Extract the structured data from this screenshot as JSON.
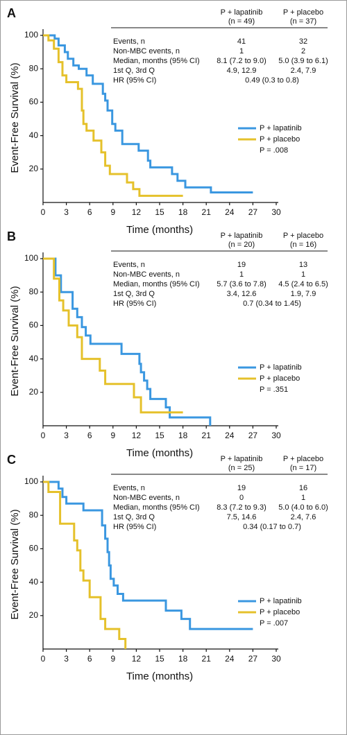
{
  "chart_data": [
    {
      "type": "line",
      "step": true,
      "panel": "A",
      "x_label": "Time (months)",
      "y_label": "Event-Free Survival (%)",
      "xlim": [
        0,
        30
      ],
      "xticks": [
        0,
        3,
        6,
        9,
        12,
        15,
        18,
        21,
        24,
        27,
        30
      ],
      "ylim": [
        0,
        100
      ],
      "yticks": [
        20,
        40,
        60,
        80,
        100
      ],
      "annotation": "P = .008",
      "table": {
        "columns": [
          {
            "name": "P + lapatinib",
            "n": "(n = 49)"
          },
          {
            "name": "P + placebo",
            "n": "(n = 37)"
          }
        ],
        "rows": [
          [
            "Events, n",
            "41",
            "32"
          ],
          [
            "Non-MBC events, n",
            "1",
            "2"
          ],
          [
            "Median, months (95% CI)",
            "8.1 (7.2 to 9.0)",
            "5.0 (3.9 to 6.1)"
          ],
          [
            "1st Q, 3rd Q",
            "4.9, 12.9",
            "2.4, 7.9"
          ],
          [
            "HR (95% CI)",
            "0.49 (0.3 to 0.8)"
          ]
        ]
      },
      "series": [
        {
          "name": "P + lapatinib",
          "color": "#3a97e0",
          "x": [
            0,
            1.5,
            1.5,
            2,
            2,
            2.8,
            2.8,
            3.2,
            3.2,
            3.9,
            3.9,
            4.6,
            4.6,
            5.6,
            5.6,
            6.4,
            6.4,
            7.7,
            7.7,
            8,
            8,
            8.3,
            8.3,
            8.9,
            8.9,
            9.3,
            9.3,
            10.2,
            10.2,
            12.3,
            12.3,
            13.5,
            13.5,
            13.8,
            13.8,
            16.6,
            16.6,
            17.3,
            17.3,
            18.3,
            18.3,
            21.6,
            21.6,
            27
          ],
          "values": [
            100,
            100,
            98,
            98,
            94,
            94,
            90,
            90,
            86,
            86,
            82,
            82,
            80,
            80,
            76,
            76,
            71,
            71,
            65,
            65,
            61,
            61,
            55,
            55,
            47,
            47,
            43,
            43,
            35,
            35,
            31,
            31,
            25,
            25,
            21,
            21,
            17,
            17,
            13,
            13,
            9,
            9,
            6,
            6
          ]
        },
        {
          "name": "P + placebo",
          "color": "#e5c12b",
          "x": [
            0,
            0.7,
            0.7,
            1.4,
            1.4,
            2,
            2,
            2.5,
            2.5,
            3,
            3,
            4.5,
            4.5,
            5,
            5,
            5.2,
            5.2,
            5.6,
            5.6,
            6.5,
            6.5,
            7.5,
            7.5,
            8,
            8,
            8.6,
            8.6,
            10.8,
            10.8,
            11.6,
            11.6,
            12.4,
            12.4,
            18
          ],
          "values": [
            100,
            100,
            97,
            97,
            92,
            92,
            84,
            84,
            76,
            76,
            72,
            72,
            68,
            68,
            55,
            55,
            47,
            47,
            43,
            43,
            37,
            37,
            30,
            30,
            22,
            22,
            17,
            17,
            12,
            12,
            8,
            8,
            4,
            4
          ]
        }
      ]
    },
    {
      "type": "line",
      "step": true,
      "panel": "B",
      "x_label": "Time (months)",
      "y_label": "Event-Free Survival (%)",
      "xlim": [
        0,
        30
      ],
      "xticks": [
        0,
        3,
        6,
        9,
        12,
        15,
        18,
        21,
        24,
        27,
        30
      ],
      "ylim": [
        0,
        100
      ],
      "yticks": [
        20,
        40,
        60,
        80,
        100
      ],
      "annotation": "P = .351",
      "table": {
        "columns": [
          {
            "name": "P + lapatinib",
            "n": "(n = 20)"
          },
          {
            "name": "P + placebo",
            "n": "(n = 16)"
          }
        ],
        "rows": [
          [
            "Events, n",
            "19",
            "13"
          ],
          [
            "Non-MBC events, n",
            "1",
            "1"
          ],
          [
            "Median, months (95% CI)",
            "5.7 (3.6 to 7.8)",
            "4.5 (2.4 to 6.5)"
          ],
          [
            "1st Q, 3rd Q",
            "3.4, 12.6",
            "1.9, 7.9"
          ],
          [
            "HR (95% CI)",
            "0.7 (0.34 to 1.45)"
          ]
        ]
      },
      "series": [
        {
          "name": "P + lapatinib",
          "color": "#3a97e0",
          "x": [
            0,
            1.6,
            1.6,
            2.3,
            2.3,
            3.8,
            3.8,
            4.4,
            4.4,
            5,
            5,
            5.5,
            5.5,
            6.1,
            6.1,
            10.1,
            10.1,
            12.4,
            12.4,
            12.6,
            12.6,
            13,
            13,
            13.4,
            13.4,
            13.8,
            13.8,
            15.8,
            15.8,
            16.3,
            16.3,
            21.5,
            21.5
          ],
          "values": [
            100,
            100,
            90,
            90,
            80,
            80,
            70,
            70,
            65,
            65,
            59,
            59,
            54,
            54,
            49,
            49,
            43,
            43,
            37,
            37,
            32,
            32,
            27,
            27,
            22,
            22,
            16,
            16,
            11,
            11,
            5,
            5,
            0
          ]
        },
        {
          "name": "P + placebo",
          "color": "#e5c12b",
          "x": [
            0,
            1.4,
            1.4,
            2.1,
            2.1,
            2.6,
            2.6,
            3.3,
            3.3,
            4.4,
            4.4,
            5,
            5,
            7.3,
            7.3,
            8,
            8,
            11.7,
            11.7,
            12.6,
            12.6,
            18
          ],
          "values": [
            100,
            100,
            88,
            88,
            75,
            75,
            69,
            69,
            60,
            60,
            53,
            53,
            40,
            40,
            33,
            33,
            25,
            25,
            17,
            17,
            8,
            8
          ]
        }
      ]
    },
    {
      "type": "line",
      "step": true,
      "panel": "C",
      "x_label": "Time (months)",
      "y_label": "Event-Free Survival (%)",
      "xlim": [
        0,
        30
      ],
      "xticks": [
        0,
        3,
        6,
        9,
        12,
        15,
        18,
        21,
        24,
        27,
        30
      ],
      "ylim": [
        0,
        100
      ],
      "yticks": [
        20,
        40,
        60,
        80,
        100
      ],
      "annotation": "P = .007",
      "table": {
        "columns": [
          {
            "name": "P + lapatinib",
            "n": "(n = 25)"
          },
          {
            "name": "P + placebo",
            "n": "(n = 17)"
          }
        ],
        "rows": [
          [
            "Events, n",
            "19",
            "16"
          ],
          [
            "Non-MBC events, n",
            "0",
            "1"
          ],
          [
            "Median, months (95% CI)",
            "8.3 (7.2 to 9.3)",
            "5.0 (4.0 to 6.0)"
          ],
          [
            "1st Q, 3rd Q",
            "7.5, 14.6",
            "2.4, 7.6"
          ],
          [
            "HR (95% CI)",
            "0.34 (0.17 to 0.7)"
          ]
        ]
      },
      "series": [
        {
          "name": "P + lapatinib",
          "color": "#3a97e0",
          "x": [
            0,
            2,
            2,
            2.5,
            2.5,
            3,
            3,
            5.2,
            5.2,
            7.6,
            7.6,
            8,
            8,
            8.3,
            8.3,
            8.5,
            8.5,
            8.7,
            8.7,
            9.1,
            9.1,
            9.6,
            9.6,
            10.3,
            10.3,
            15.8,
            15.8,
            17.8,
            17.8,
            18.9,
            18.9,
            27
          ],
          "values": [
            100,
            100,
            96,
            96,
            91,
            91,
            87,
            87,
            83,
            83,
            74,
            74,
            66,
            66,
            58,
            58,
            50,
            50,
            42,
            42,
            38,
            38,
            33,
            33,
            29,
            29,
            23,
            23,
            18,
            18,
            12,
            12
          ]
        },
        {
          "name": "P + placebo",
          "color": "#e5c12b",
          "x": [
            0,
            0.7,
            0.7,
            2.2,
            2.2,
            4,
            4,
            4.4,
            4.4,
            4.8,
            4.8,
            5.2,
            5.2,
            6,
            6,
            7.4,
            7.4,
            8,
            8,
            9.8,
            9.8,
            10.6,
            10.6
          ],
          "values": [
            100,
            100,
            94,
            94,
            75,
            75,
            65,
            65,
            59,
            59,
            47,
            47,
            41,
            41,
            31,
            31,
            18,
            18,
            12,
            12,
            6,
            6,
            0
          ]
        }
      ]
    }
  ]
}
